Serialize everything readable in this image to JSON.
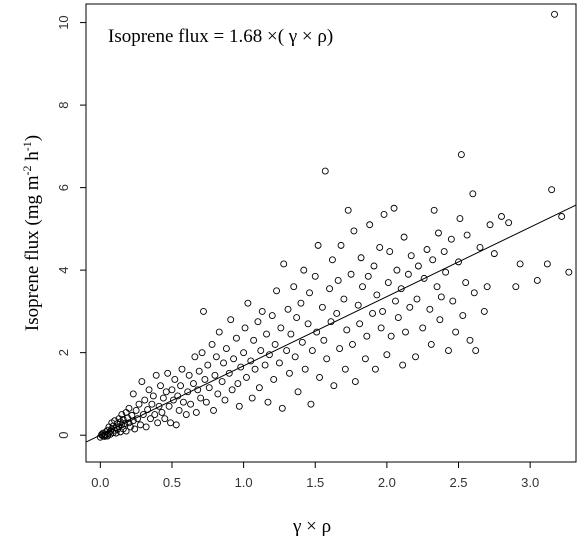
{
  "chart_data": {
    "type": "scatter",
    "title": "",
    "xlabel": "γ × ρ",
    "ylabel": "Isoprene flux (mg m",
    "ylabel_sup1": "-2",
    "ylabel_mid": " h",
    "ylabel_sup2": "-1",
    "ylabel_end": ")",
    "annotation": "Isoprene flux = 1.68 ×( γ × ρ)",
    "xlim": [
      -0.1,
      3.32
    ],
    "ylim": [
      -0.65,
      10.45
    ],
    "xticks": [
      "0.0",
      "0.5",
      "1.0",
      "1.5",
      "2.0",
      "2.5",
      "3.0"
    ],
    "yticks": [
      "0",
      "2",
      "4",
      "6",
      "8",
      "10"
    ],
    "fit_line": {
      "slope": 1.68,
      "intercept": 0
    },
    "grid": false,
    "colors": {
      "points": "#000000",
      "line": "#000000",
      "frame": "#000000"
    },
    "points": [
      [
        0.0,
        -0.05
      ],
      [
        0.01,
        0.02
      ],
      [
        0.01,
        0.0
      ],
      [
        0.02,
        -0.02
      ],
      [
        0.02,
        0.05
      ],
      [
        0.03,
        0.01
      ],
      [
        0.03,
        -0.03
      ],
      [
        0.04,
        0.08
      ],
      [
        0.04,
        0.0
      ],
      [
        0.05,
        0.12
      ],
      [
        0.05,
        -0.02
      ],
      [
        0.06,
        0.05
      ],
      [
        0.06,
        0.2
      ],
      [
        0.07,
        0.1
      ],
      [
        0.07,
        0.02
      ],
      [
        0.08,
        0.15
      ],
      [
        0.08,
        0.3
      ],
      [
        0.09,
        0.06
      ],
      [
        0.09,
        0.22
      ],
      [
        0.1,
        0.12
      ],
      [
        0.1,
        0.35
      ],
      [
        0.11,
        0.18
      ],
      [
        0.11,
        0.05
      ],
      [
        0.12,
        0.28
      ],
      [
        0.12,
        0.14
      ],
      [
        0.13,
        0.4
      ],
      [
        0.13,
        0.2
      ],
      [
        0.14,
        0.08
      ],
      [
        0.14,
        0.32
      ],
      [
        0.15,
        0.25
      ],
      [
        0.15,
        0.5
      ],
      [
        0.16,
        0.15
      ],
      [
        0.16,
        0.38
      ],
      [
        0.17,
        0.28
      ],
      [
        0.18,
        0.55
      ],
      [
        0.18,
        0.1
      ],
      [
        0.19,
        0.42
      ],
      [
        0.2,
        0.3
      ],
      [
        0.2,
        0.65
      ],
      [
        0.21,
        0.2
      ],
      [
        0.22,
        0.48
      ],
      [
        0.23,
        1.0
      ],
      [
        0.23,
        0.35
      ],
      [
        0.24,
        0.15
      ],
      [
        0.25,
        0.6
      ],
      [
        0.26,
        0.4
      ],
      [
        0.27,
        0.75
      ],
      [
        0.28,
        0.25
      ],
      [
        0.29,
        1.3
      ],
      [
        0.3,
        0.5
      ],
      [
        0.31,
        0.85
      ],
      [
        0.32,
        0.2
      ],
      [
        0.33,
        0.62
      ],
      [
        0.34,
        1.1
      ],
      [
        0.35,
        0.4
      ],
      [
        0.36,
        0.75
      ],
      [
        0.37,
        0.95
      ],
      [
        0.38,
        0.5
      ],
      [
        0.39,
        1.45
      ],
      [
        0.4,
        0.3
      ],
      [
        0.41,
        0.7
      ],
      [
        0.42,
        1.2
      ],
      [
        0.43,
        0.55
      ],
      [
        0.44,
        0.9
      ],
      [
        0.45,
        0.4
      ],
      [
        0.46,
        1.05
      ],
      [
        0.47,
        1.5
      ],
      [
        0.48,
        0.7
      ],
      [
        0.49,
        0.3
      ],
      [
        0.5,
        1.1
      ],
      [
        0.51,
        0.85
      ],
      [
        0.52,
        1.35
      ],
      [
        0.53,
        0.25
      ],
      [
        0.54,
        0.95
      ],
      [
        0.55,
        0.6
      ],
      [
        0.56,
        1.2
      ],
      [
        0.57,
        1.6
      ],
      [
        0.58,
        0.8
      ],
      [
        0.6,
        0.5
      ],
      [
        0.61,
        1.05
      ],
      [
        0.62,
        1.45
      ],
      [
        0.63,
        0.75
      ],
      [
        0.65,
        1.25
      ],
      [
        0.66,
        1.9
      ],
      [
        0.67,
        0.55
      ],
      [
        0.68,
        1.1
      ],
      [
        0.69,
        1.55
      ],
      [
        0.7,
        0.9
      ],
      [
        0.71,
        2.0
      ],
      [
        0.72,
        3.0
      ],
      [
        0.73,
        1.35
      ],
      [
        0.74,
        0.8
      ],
      [
        0.75,
        1.7
      ],
      [
        0.76,
        1.15
      ],
      [
        0.78,
        2.2
      ],
      [
        0.79,
        0.6
      ],
      [
        0.8,
        1.45
      ],
      [
        0.81,
        1.9
      ],
      [
        0.82,
        1.0
      ],
      [
        0.83,
        2.5
      ],
      [
        0.85,
        1.3
      ],
      [
        0.86,
        1.75
      ],
      [
        0.87,
        0.85
      ],
      [
        0.88,
        2.1
      ],
      [
        0.9,
        1.5
      ],
      [
        0.91,
        2.8
      ],
      [
        0.92,
        1.1
      ],
      [
        0.93,
        1.85
      ],
      [
        0.95,
        2.35
      ],
      [
        0.96,
        1.25
      ],
      [
        0.97,
        0.7
      ],
      [
        0.98,
        1.65
      ],
      [
        1.0,
        2.0
      ],
      [
        1.01,
        2.6
      ],
      [
        1.02,
        1.4
      ],
      [
        1.03,
        3.2
      ],
      [
        1.05,
        1.8
      ],
      [
        1.06,
        0.9
      ],
      [
        1.07,
        2.3
      ],
      [
        1.08,
        1.6
      ],
      [
        1.1,
        2.75
      ],
      [
        1.11,
        1.15
      ],
      [
        1.12,
        2.05
      ],
      [
        1.13,
        3.0
      ],
      [
        1.15,
        1.7
      ],
      [
        1.16,
        2.45
      ],
      [
        1.17,
        0.8
      ],
      [
        1.18,
        1.95
      ],
      [
        1.2,
        2.9
      ],
      [
        1.21,
        1.35
      ],
      [
        1.22,
        2.2
      ],
      [
        1.23,
        3.5
      ],
      [
        1.25,
        1.75
      ],
      [
        1.26,
        2.6
      ],
      [
        1.27,
        0.65
      ],
      [
        1.28,
        4.15
      ],
      [
        1.3,
        2.05
      ],
      [
        1.31,
        3.05
      ],
      [
        1.32,
        1.5
      ],
      [
        1.33,
        2.45
      ],
      [
        1.35,
        3.6
      ],
      [
        1.36,
        1.9
      ],
      [
        1.37,
        2.85
      ],
      [
        1.38,
        1.05
      ],
      [
        1.4,
        3.2
      ],
      [
        1.41,
        2.25
      ],
      [
        1.42,
        4.0
      ],
      [
        1.43,
        1.6
      ],
      [
        1.45,
        2.7
      ],
      [
        1.46,
        3.45
      ],
      [
        1.47,
        0.75
      ],
      [
        1.48,
        2.05
      ],
      [
        1.5,
        3.85
      ],
      [
        1.51,
        2.5
      ],
      [
        1.52,
        4.6
      ],
      [
        1.53,
        1.4
      ],
      [
        1.55,
        3.1
      ],
      [
        1.56,
        2.3
      ],
      [
        1.57,
        6.4
      ],
      [
        1.58,
        1.85
      ],
      [
        1.6,
        3.55
      ],
      [
        1.61,
        2.75
      ],
      [
        1.62,
        4.25
      ],
      [
        1.63,
        1.2
      ],
      [
        1.65,
        2.95
      ],
      [
        1.66,
        3.75
      ],
      [
        1.67,
        2.1
      ],
      [
        1.68,
        4.6
      ],
      [
        1.7,
        3.3
      ],
      [
        1.71,
        1.6
      ],
      [
        1.72,
        2.55
      ],
      [
        1.73,
        5.45
      ],
      [
        1.75,
        3.9
      ],
      [
        1.76,
        2.2
      ],
      [
        1.77,
        4.95
      ],
      [
        1.78,
        1.3
      ],
      [
        1.8,
        3.15
      ],
      [
        1.81,
        2.7
      ],
      [
        1.82,
        4.3
      ],
      [
        1.83,
        3.6
      ],
      [
        1.85,
        1.85
      ],
      [
        1.86,
        2.4
      ],
      [
        1.87,
        3.85
      ],
      [
        1.88,
        5.1
      ],
      [
        1.9,
        2.95
      ],
      [
        1.91,
        4.1
      ],
      [
        1.92,
        1.6
      ],
      [
        1.93,
        3.4
      ],
      [
        1.95,
        4.55
      ],
      [
        1.96,
        2.6
      ],
      [
        1.97,
        3.0
      ],
      [
        1.98,
        5.35
      ],
      [
        2.0,
        1.95
      ],
      [
        2.01,
        3.7
      ],
      [
        2.02,
        4.45
      ],
      [
        2.03,
        2.4
      ],
      [
        2.05,
        5.5
      ],
      [
        2.06,
        3.25
      ],
      [
        2.07,
        4.0
      ],
      [
        2.08,
        2.85
      ],
      [
        2.1,
        3.55
      ],
      [
        2.11,
        1.7
      ],
      [
        2.12,
        4.8
      ],
      [
        2.13,
        2.5
      ],
      [
        2.15,
        3.9
      ],
      [
        2.16,
        3.1
      ],
      [
        2.17,
        4.35
      ],
      [
        2.2,
        1.9
      ],
      [
        2.21,
        3.3
      ],
      [
        2.22,
        4.1
      ],
      [
        2.25,
        2.6
      ],
      [
        2.26,
        3.8
      ],
      [
        2.28,
        4.5
      ],
      [
        2.3,
        3.05
      ],
      [
        2.31,
        2.2
      ],
      [
        2.32,
        4.25
      ],
      [
        2.33,
        5.45
      ],
      [
        2.35,
        3.6
      ],
      [
        2.36,
        4.9
      ],
      [
        2.37,
        2.8
      ],
      [
        2.38,
        3.35
      ],
      [
        2.4,
        4.45
      ],
      [
        2.41,
        3.95
      ],
      [
        2.43,
        2.05
      ],
      [
        2.45,
        4.75
      ],
      [
        2.46,
        3.25
      ],
      [
        2.48,
        2.5
      ],
      [
        2.5,
        4.2
      ],
      [
        2.51,
        5.25
      ],
      [
        2.52,
        6.8
      ],
      [
        2.53,
        2.9
      ],
      [
        2.55,
        3.7
      ],
      [
        2.56,
        4.85
      ],
      [
        2.58,
        2.3
      ],
      [
        2.6,
        5.85
      ],
      [
        2.61,
        3.45
      ],
      [
        2.62,
        2.05
      ],
      [
        2.65,
        4.55
      ],
      [
        2.68,
        3.0
      ],
      [
        2.7,
        3.6
      ],
      [
        2.72,
        5.1
      ],
      [
        2.75,
        4.4
      ],
      [
        2.8,
        5.3
      ],
      [
        2.85,
        5.15
      ],
      [
        2.9,
        3.6
      ],
      [
        2.93,
        4.15
      ],
      [
        3.05,
        3.75
      ],
      [
        3.12,
        4.15
      ],
      [
        3.15,
        5.95
      ],
      [
        3.17,
        10.2
      ],
      [
        3.22,
        5.3
      ],
      [
        3.27,
        3.95
      ]
    ]
  }
}
